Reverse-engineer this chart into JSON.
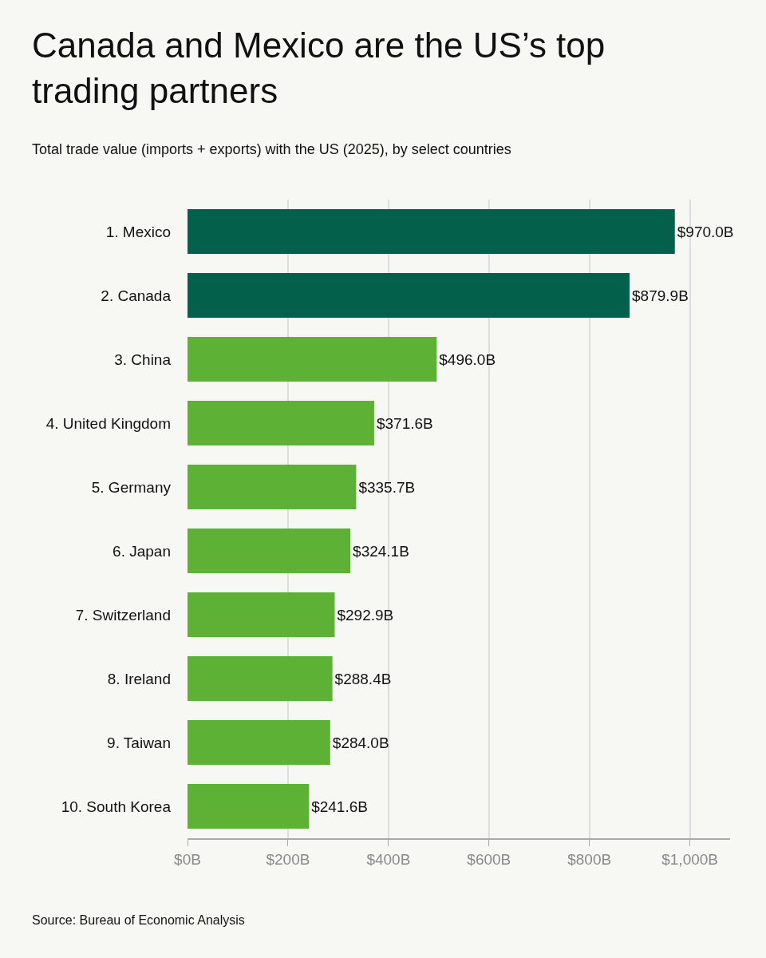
{
  "chart_data": {
    "type": "bar",
    "orientation": "horizontal",
    "title": "Canada and Mexico are the US’s top trading partners",
    "subtitle": "Total trade value (imports + exports) with the US (2025), by select countries",
    "categories": [
      "1. Mexico",
      "2. Canada",
      "3. China",
      "4. United Kingdom",
      "5. Germany",
      "6. Japan",
      "7. Switzerland",
      "8. Ireland",
      "9. Taiwan",
      "10. South Korea"
    ],
    "values": [
      970.0,
      879.9,
      496.0,
      371.6,
      335.7,
      324.1,
      292.9,
      288.4,
      284.0,
      241.6
    ],
    "value_labels": [
      "$970.0B",
      "$879.9B",
      "$496.0B",
      "$371.6B",
      "$335.7B",
      "$324.1B",
      "$292.9B",
      "$288.4B",
      "$284.0B",
      "$241.6B"
    ],
    "colors": [
      "#03604a",
      "#03604a",
      "#5db135",
      "#5db135",
      "#5db135",
      "#5db135",
      "#5db135",
      "#5db135",
      "#5db135",
      "#5db135"
    ],
    "xlim": [
      0,
      1080
    ],
    "xticks": [
      {
        "value": 0,
        "label": "$0B"
      },
      {
        "value": 200,
        "label": "$200B"
      },
      {
        "value": 400,
        "label": "$400B"
      },
      {
        "value": 600,
        "label": "$600B"
      },
      {
        "value": 800,
        "label": "$800B"
      },
      {
        "value": 1000,
        "label": "$1,000B"
      }
    ],
    "grid": "x",
    "annotations": [
      "Source: Bureau of Economic Analysis"
    ]
  }
}
